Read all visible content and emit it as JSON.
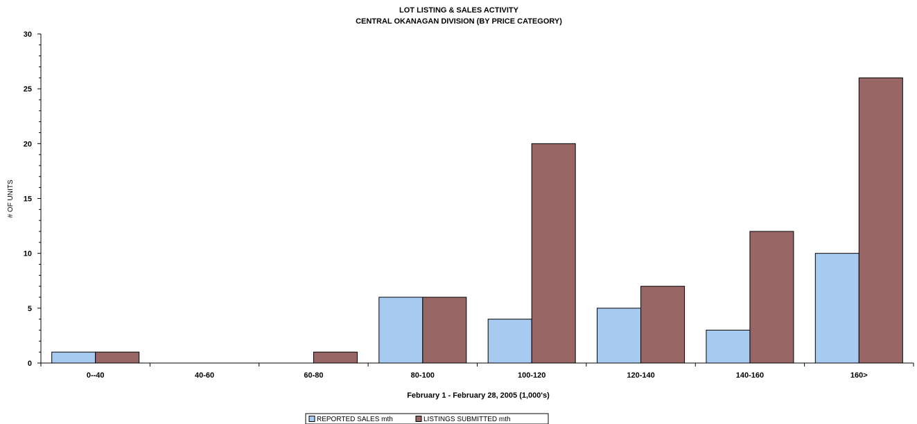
{
  "chart_data": {
    "type": "bar",
    "title": "LOT LISTING & SALES ACTIVITY",
    "subtitle": "CENTRAL OKANAGAN DIVISION (BY PRICE CATEGORY)",
    "xlabel": "February 1 - February 28, 2005 (1,000's)",
    "ylabel": "# OF UNITS",
    "ylim": [
      0,
      30
    ],
    "yticks": [
      0,
      5,
      10,
      15,
      20,
      25,
      30
    ],
    "categories": [
      "0--40",
      "40-60",
      "60-80",
      "80-100",
      "100-120",
      "120-140",
      "140-160",
      "160>"
    ],
    "series": [
      {
        "name": "REPORTED SALES mth",
        "color": "#a6caf0",
        "values": [
          1,
          0,
          0,
          6,
          4,
          5,
          3,
          10
        ]
      },
      {
        "name": "LISTINGS SUBMITTED mth",
        "color": "#996666",
        "values": [
          1,
          0,
          1,
          6,
          20,
          7,
          12,
          26
        ]
      }
    ],
    "grid": false,
    "legend": "bottom-center"
  }
}
